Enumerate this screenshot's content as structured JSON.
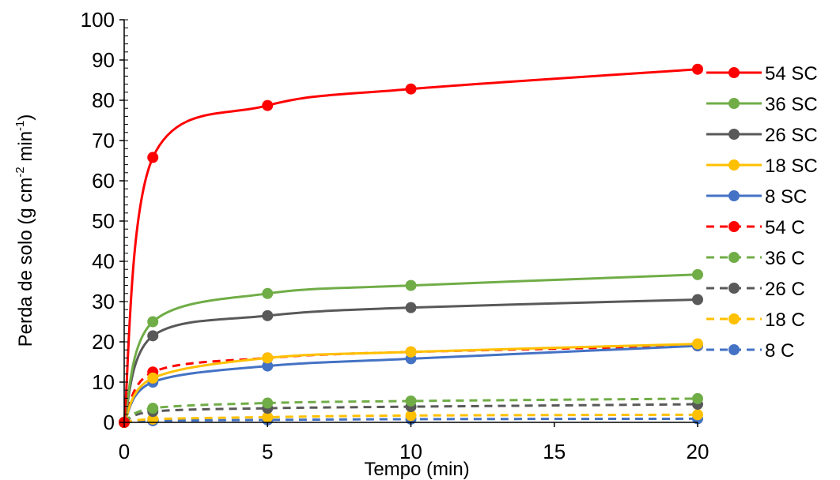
{
  "chart_data": {
    "type": "line",
    "xlabel": "Tempo (min)",
    "ylabel_main": "Perda de solo (g cm",
    "ylabel_sup1": "-2",
    "ylabel_mid": " min",
    "ylabel_sup2": "-1",
    "ylabel_end": ")",
    "xlim": [
      0,
      20
    ],
    "ylim": [
      0,
      100
    ],
    "xticks": [
      0,
      5,
      10,
      15,
      20
    ],
    "yticks": [
      0,
      10,
      20,
      30,
      40,
      50,
      60,
      70,
      80,
      90,
      100
    ],
    "grid": false,
    "legend_position": "right",
    "x": [
      0,
      1,
      5,
      10,
      20
    ],
    "series": [
      {
        "name": "54 SC",
        "color": "#FF0000",
        "dash": false,
        "values": [
          0,
          65.8,
          78.7,
          82.8,
          87.7
        ]
      },
      {
        "name": "36 SC",
        "color": "#70AD47",
        "dash": false,
        "values": [
          0,
          25,
          32,
          34,
          36.7
        ]
      },
      {
        "name": "26 SC",
        "color": "#595959",
        "dash": false,
        "values": [
          0,
          21.5,
          26.5,
          28.5,
          30.5
        ]
      },
      {
        "name": "18 SC",
        "color": "#FFC000",
        "dash": false,
        "values": [
          0,
          11,
          16,
          17.5,
          19.5
        ]
      },
      {
        "name": "8 SC",
        "color": "#4472C4",
        "dash": false,
        "values": [
          0,
          10,
          14,
          15.8,
          19
        ]
      },
      {
        "name": "54 C",
        "color": "#FF0000",
        "dash": true,
        "values": [
          0,
          12.5,
          16,
          17.5,
          19
        ]
      },
      {
        "name": "36 C",
        "color": "#70AD47",
        "dash": true,
        "values": [
          0,
          3.5,
          4.8,
          5.3,
          5.9
        ]
      },
      {
        "name": "26 C",
        "color": "#595959",
        "dash": true,
        "values": [
          0,
          2.7,
          3.5,
          3.9,
          4.5
        ]
      },
      {
        "name": "18 C",
        "color": "#FFC000",
        "dash": true,
        "values": [
          0,
          0.8,
          1.3,
          1.7,
          1.9
        ]
      },
      {
        "name": "8 C",
        "color": "#4472C4",
        "dash": true,
        "values": [
          0,
          0.4,
          0.6,
          0.8,
          0.9
        ]
      }
    ]
  }
}
